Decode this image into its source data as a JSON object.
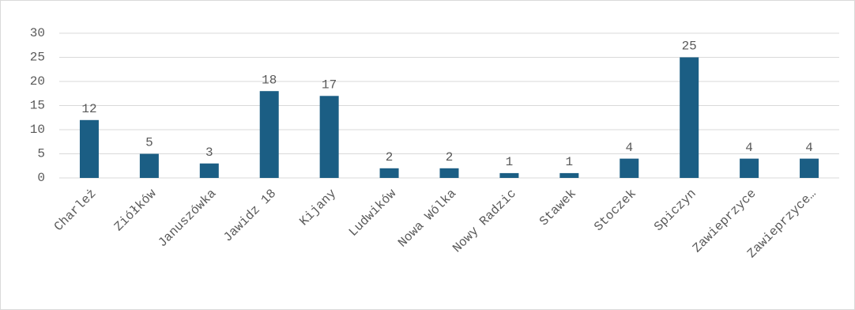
{
  "chart_data": {
    "type": "bar",
    "categories": [
      "Charleż",
      "Ziółków",
      "Januszówka",
      "Jawidz 18",
      "Kijany",
      "Ludwików",
      "Nowa Wólka",
      "Nowy Radzic",
      "Stawek",
      "Stoczek",
      "Spiczyn",
      "Zawieprzyce",
      "Zawieprzyce…"
    ],
    "values": [
      12,
      5,
      3,
      18,
      17,
      2,
      2,
      1,
      1,
      4,
      25,
      4,
      4
    ],
    "color": "#1b5e84",
    "ylim": [
      0,
      30
    ],
    "yticks": [
      0,
      5,
      10,
      15,
      20,
      25,
      30
    ],
    "grid": true
  }
}
